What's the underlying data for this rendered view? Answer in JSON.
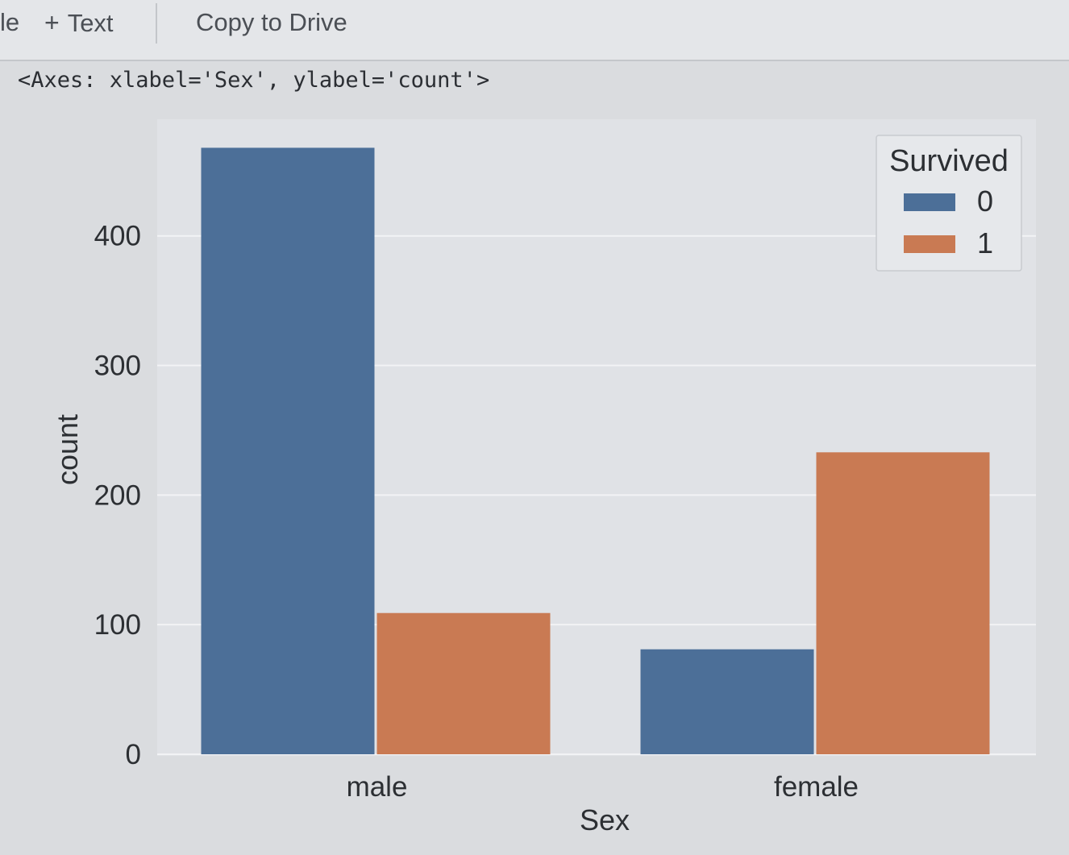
{
  "toolbar": {
    "partial_item": "le",
    "add_text_label": "Text",
    "add_text_icon": "plus-icon",
    "copy_to_drive": "Copy to Drive"
  },
  "cell_output": {
    "repr": "<Axes: xlabel='Sex', ylabel='count'>"
  },
  "chart_data": {
    "type": "bar",
    "categories": [
      "male",
      "female"
    ],
    "series": [
      {
        "name": "0",
        "values": [
          468,
          81
        ],
        "color": "#4c6f98"
      },
      {
        "name": "1",
        "values": [
          109,
          233
        ],
        "color": "#c97a53"
      }
    ],
    "xlabel": "Sex",
    "ylabel": "count",
    "yticks": [
      0,
      100,
      200,
      300,
      400
    ],
    "ylim": [
      0,
      490
    ],
    "legend_title": "Survived",
    "legend_position": "top-right",
    "grid": true,
    "background": "#e0e2e6"
  }
}
